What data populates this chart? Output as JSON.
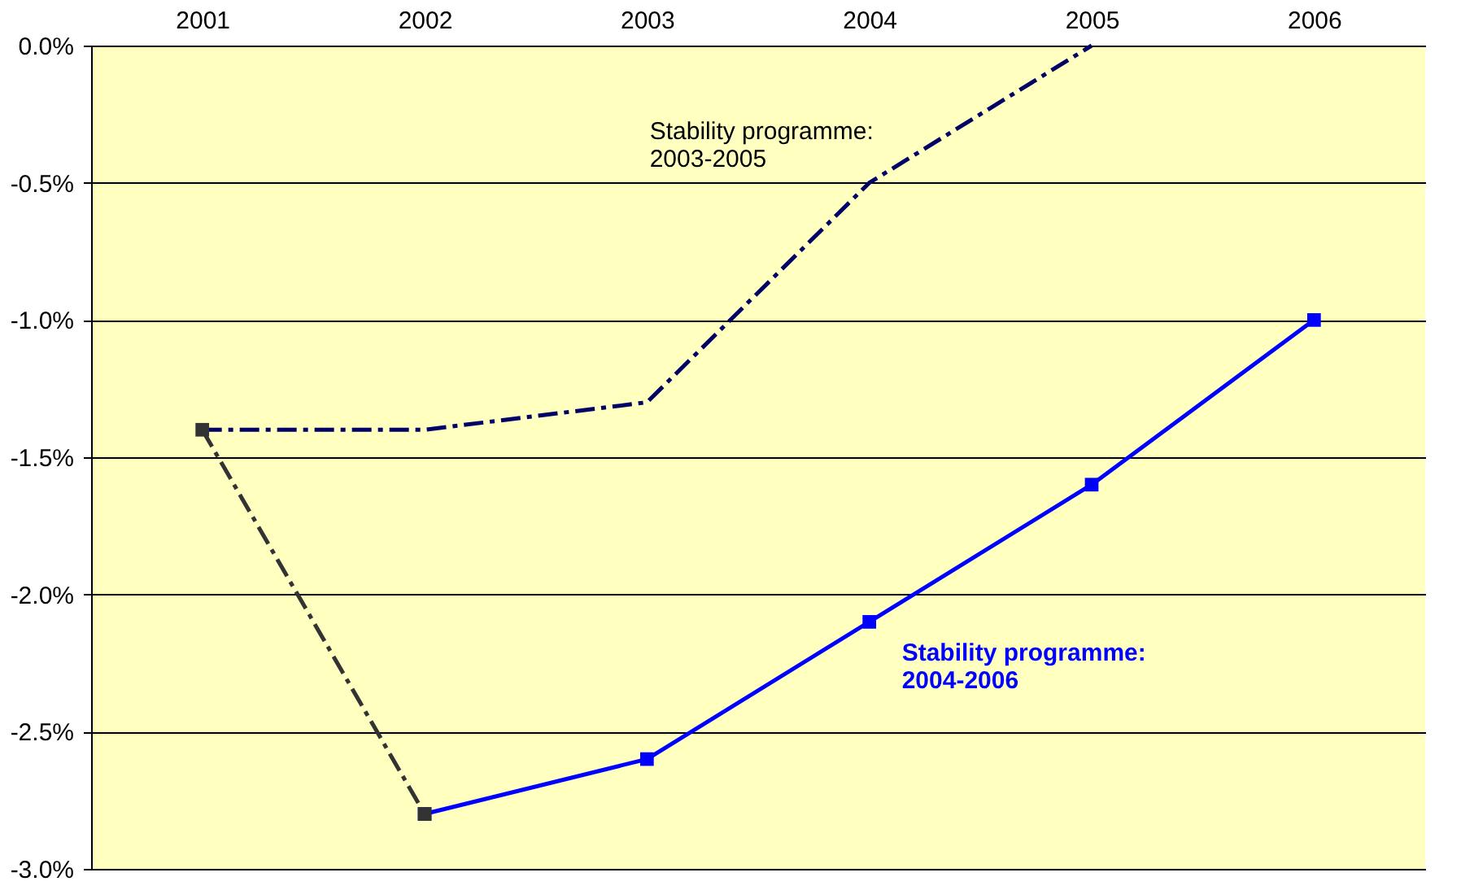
{
  "chart_data": {
    "type": "line",
    "categories": [
      "2001",
      "2002",
      "2003",
      "2004",
      "2005",
      "2006"
    ],
    "series": [
      {
        "name": "Stability programme:\n2003-2005",
        "color": "#000066",
        "line_style": "dashed",
        "marker": "none",
        "values": [
          -1.4,
          -1.4,
          -1.3,
          -0.5,
          0.0,
          null
        ]
      },
      {
        "name": "Stability programme:\n2004-2006",
        "color": "#0000ff",
        "line_style": "solid",
        "marker": "square",
        "values": [
          null,
          -2.8,
          -2.6,
          -2.1,
          -1.6,
          -1.0
        ]
      },
      {
        "color": "#333333",
        "line_style": "dashed",
        "marker": "square",
        "values": [
          -1.4,
          -2.8,
          null,
          null,
          null,
          null
        ]
      }
    ],
    "ylim": [
      -3.0,
      0.0
    ],
    "yticks": [
      {
        "value": 0.0,
        "label": "0.0%"
      },
      {
        "value": -0.5,
        "label": "-0.5%"
      },
      {
        "value": -1.0,
        "label": "-1.0%"
      },
      {
        "value": -1.5,
        "label": "-1.5%"
      },
      {
        "value": -2.0,
        "label": "-2.0%"
      },
      {
        "value": -2.5,
        "label": "-2.5%"
      },
      {
        "value": -3.0,
        "label": "-3.0%"
      }
    ],
    "grid": "y"
  }
}
